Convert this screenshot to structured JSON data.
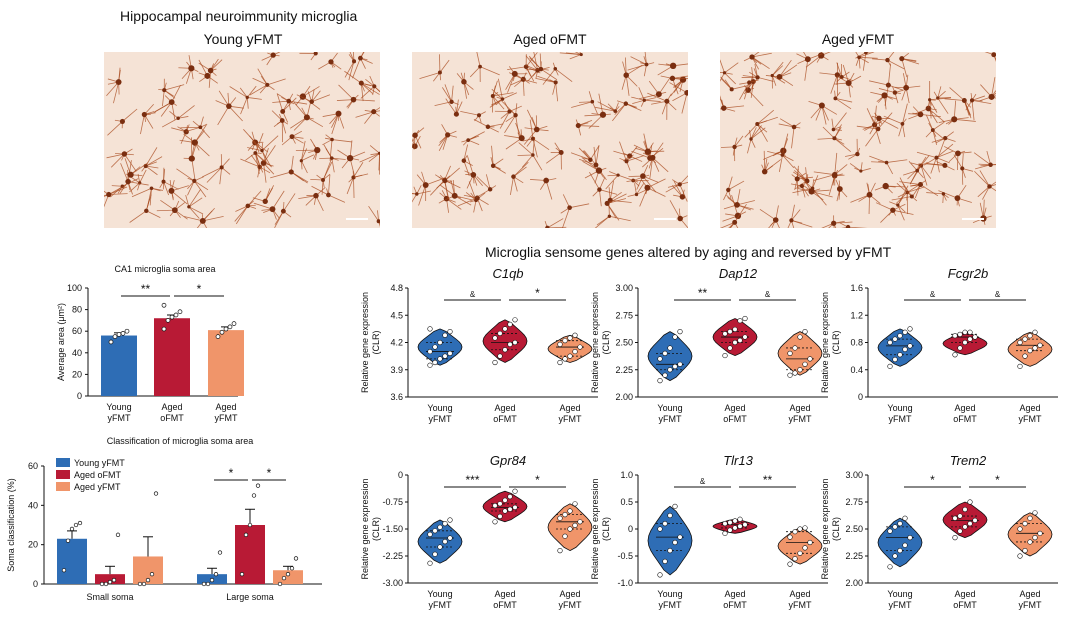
{
  "colors": {
    "young_yfmt": "#2e6db5",
    "aged_ofmt": "#b81a35",
    "aged_yfmt": "#f0956a",
    "micro_bg": "#f5e3d6",
    "micro_stain": "#a84a1e"
  },
  "panel_title": "Hippocampal neuroimmunity microglia",
  "images": [
    {
      "label": "Young yFMT"
    },
    {
      "label": "Aged oFMT"
    },
    {
      "label": "Aged yFMT"
    }
  ],
  "sensome_title": "Microglia sensome genes altered by aging and reversed by yFMT",
  "chart_data": [
    {
      "type": "bar",
      "title": "CA1 microglia soma area",
      "ylabel": "Average area (μm²)",
      "categories": [
        "Young\nyFMT",
        "Aged\noFMT",
        "Aged\nyFMT"
      ],
      "values": [
        56,
        72,
        61
      ],
      "errors": [
        2.5,
        3,
        3
      ],
      "points": [
        [
          50,
          55,
          57,
          58,
          60
        ],
        [
          62,
          70,
          73,
          75,
          78,
          84
        ],
        [
          55,
          59,
          62,
          64,
          67
        ]
      ],
      "ylim": [
        0,
        100
      ],
      "yticks": [
        0,
        20,
        40,
        60,
        80,
        100
      ],
      "sig": [
        {
          "from": 0,
          "to": 1,
          "label": "**"
        },
        {
          "from": 1,
          "to": 2,
          "label": "*"
        }
      ]
    },
    {
      "type": "bar",
      "title": "Classification of microglia soma area",
      "ylabel": "Soma classification (%)",
      "categories": [
        "Small soma",
        "Large soma"
      ],
      "series": [
        {
          "name": "Young yFMT",
          "values": [
            23,
            5
          ],
          "errors": [
            4,
            3
          ],
          "points": [
            [
              7,
              22,
              28,
              30,
              31
            ],
            [
              0,
              0,
              2,
              5,
              16
            ]
          ]
        },
        {
          "name": "Aged oFMT",
          "values": [
            5,
            30
          ],
          "errors": [
            4,
            8
          ],
          "points": [
            [
              0,
              0,
              1,
              2,
              25
            ],
            [
              5,
              25,
              30,
              45,
              50
            ]
          ]
        },
        {
          "name": "Aged yFMT",
          "values": [
            14,
            7
          ],
          "errors": [
            10,
            2
          ],
          "points": [
            [
              0,
              0,
              2,
              5,
              46
            ],
            [
              0,
              3,
              5,
              8,
              13
            ]
          ]
        }
      ],
      "ylim": [
        0,
        60
      ],
      "yticks": [
        0,
        20,
        40,
        60
      ],
      "sig": [
        {
          "group": 1,
          "from": 0,
          "to": 1,
          "label": "*"
        },
        {
          "group": 1,
          "from": 1,
          "to": 2,
          "label": "*"
        }
      ]
    },
    {
      "type": "violin",
      "title": "C1qb",
      "ylabel": "Relative gene expression\n(CLR)",
      "categories": [
        "Young\nyFMT",
        "Aged\noFMT",
        "Aged\nyFMT"
      ],
      "ylim": [
        3.6,
        4.8
      ],
      "yticks": [
        "3.6",
        "3.9",
        "4.2",
        "4.5",
        "4.8"
      ],
      "points": [
        [
          3.95,
          3.98,
          4.02,
          4.05,
          4.08,
          4.1,
          4.15,
          4.2,
          4.28,
          4.32,
          4.35
        ],
        [
          3.98,
          4.05,
          4.12,
          4.18,
          4.2,
          4.25,
          4.3,
          4.35,
          4.4,
          4.45
        ],
        [
          3.98,
          4.02,
          4.05,
          4.1,
          4.15,
          4.18,
          4.22,
          4.25,
          4.28
        ]
      ],
      "sig": [
        {
          "from": 0,
          "to": 1,
          "label": "&"
        },
        {
          "from": 1,
          "to": 2,
          "label": "*"
        }
      ]
    },
    {
      "type": "violin",
      "title": "Dap12",
      "ylabel": "Relative gene expression\n(CLR)",
      "categories": [
        "Young\nyFMT",
        "Aged\noFMT",
        "Aged\nyFMT"
      ],
      "ylim": [
        2.0,
        3.0
      ],
      "yticks": [
        "2.00",
        "2.25",
        "2.50",
        "2.75",
        "3.00"
      ],
      "points": [
        [
          2.15,
          2.2,
          2.25,
          2.28,
          2.3,
          2.35,
          2.4,
          2.45,
          2.55,
          2.6
        ],
        [
          2.38,
          2.45,
          2.5,
          2.52,
          2.55,
          2.58,
          2.6,
          2.62,
          2.7,
          2.72
        ],
        [
          2.2,
          2.22,
          2.25,
          2.3,
          2.35,
          2.4,
          2.45,
          2.55,
          2.6
        ]
      ],
      "sig": [
        {
          "from": 0,
          "to": 1,
          "label": "**"
        },
        {
          "from": 1,
          "to": 2,
          "label": "&"
        }
      ]
    },
    {
      "type": "violin",
      "title": "Fcgr2b",
      "ylabel": "Relative gene expression\n(CLR)",
      "categories": [
        "Young\nyFMT",
        "Aged\noFMT",
        "Aged\nyFMT"
      ],
      "ylim": [
        0,
        1.6
      ],
      "yticks": [
        "0",
        "0.4",
        "0.8",
        "1.2",
        "1.6"
      ],
      "points": [
        [
          0.45,
          0.55,
          0.62,
          0.7,
          0.75,
          0.8,
          0.85,
          0.9,
          0.95,
          1.0
        ],
        [
          0.62,
          0.72,
          0.8,
          0.85,
          0.88,
          0.9,
          0.92,
          0.95,
          0.95
        ],
        [
          0.45,
          0.6,
          0.68,
          0.72,
          0.76,
          0.8,
          0.85,
          0.9,
          0.95
        ]
      ],
      "sig": [
        {
          "from": 0,
          "to": 1,
          "label": "&"
        },
        {
          "from": 1,
          "to": 2,
          "label": "&"
        }
      ]
    },
    {
      "type": "violin",
      "title": "Gpr84",
      "ylabel": "Relative gene expression\n(CLR)",
      "categories": [
        "Young\nyFMT",
        "Aged\noFMT",
        "Aged\nyFMT"
      ],
      "ylim": [
        -3.0,
        0
      ],
      "yticks": [
        "-3.00",
        "-2.25",
        "-1.50",
        "-0.75",
        "0"
      ],
      "points": [
        [
          -2.45,
          -2.2,
          -2.0,
          -1.85,
          -1.75,
          -1.65,
          -1.55,
          -1.45,
          -1.35,
          -1.25
        ],
        [
          -1.3,
          -1.15,
          -1.0,
          -0.95,
          -0.9,
          -0.85,
          -0.8,
          -0.7,
          -0.6,
          -0.45
        ],
        [
          -2.1,
          -1.7,
          -1.5,
          -1.4,
          -1.3,
          -1.2,
          -1.1,
          -1.0,
          -0.8
        ]
      ],
      "sig": [
        {
          "from": 0,
          "to": 1,
          "label": "***"
        },
        {
          "from": 1,
          "to": 2,
          "label": "*"
        }
      ]
    },
    {
      "type": "violin",
      "title": "Tlr13",
      "ylabel": "Relative gene expression\n(CLR)",
      "categories": [
        "Young\nyFMT",
        "Aged\noFMT",
        "Aged\nyFMT"
      ],
      "ylim": [
        -1.0,
        1.0
      ],
      "yticks": [
        "-1.0",
        "-0.5",
        "0",
        "0.5",
        "1.0"
      ],
      "points": [
        [
          -0.85,
          -0.6,
          -0.4,
          -0.25,
          -0.15,
          0.0,
          0.1,
          0.25,
          0.42
        ],
        [
          -0.08,
          -0.02,
          0.02,
          0.05,
          0.08,
          0.1,
          0.12,
          0.15,
          0.18
        ],
        [
          -0.65,
          -0.55,
          -0.45,
          -0.35,
          -0.25,
          -0.15,
          -0.05,
          0.0,
          0.02
        ]
      ],
      "sig": [
        {
          "from": 0,
          "to": 1,
          "label": "&"
        },
        {
          "from": 1,
          "to": 2,
          "label": "**"
        }
      ]
    },
    {
      "type": "violin",
      "title": "Trem2",
      "ylabel": "Relative gene expression\n(CLR)",
      "categories": [
        "Young\nyFMT",
        "Aged\noFMT",
        "Aged\nyFMT"
      ],
      "ylim": [
        2.0,
        3.0
      ],
      "yticks": [
        "2.00",
        "2.25",
        "2.50",
        "2.75",
        "3.00"
      ],
      "points": [
        [
          2.15,
          2.25,
          2.3,
          2.35,
          2.42,
          2.48,
          2.52,
          2.55,
          2.6
        ],
        [
          2.42,
          2.48,
          2.52,
          2.55,
          2.58,
          2.6,
          2.62,
          2.68,
          2.75
        ],
        [
          2.25,
          2.3,
          2.38,
          2.42,
          2.46,
          2.5,
          2.55,
          2.6,
          2.65
        ]
      ],
      "sig": [
        {
          "from": 0,
          "to": 1,
          "label": "*"
        },
        {
          "from": 1,
          "to": 2,
          "label": "*"
        }
      ]
    }
  ]
}
